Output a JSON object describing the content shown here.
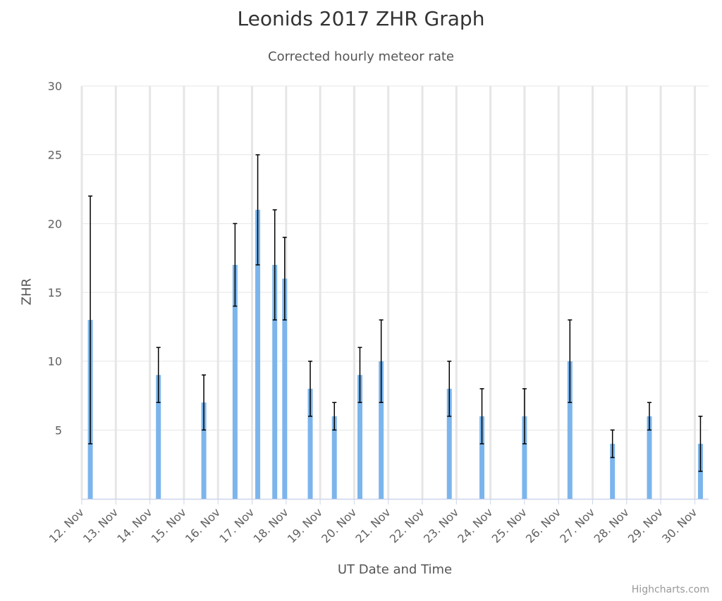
{
  "chart_data": {
    "type": "bar",
    "title": "Leonids 2017 ZHR Graph",
    "subtitle": "Corrected hourly meteor rate",
    "xlabel": "UT Date and Time",
    "ylabel": "ZHR",
    "ylim": [
      0,
      30
    ],
    "yticks": [
      5,
      10,
      15,
      20,
      25,
      30
    ],
    "xticks": [
      "12. Nov",
      "13. Nov",
      "14. Nov",
      "15. Nov",
      "16. Nov",
      "17. Nov",
      "18. Nov",
      "19. Nov",
      "20. Nov",
      "21. Nov",
      "22. Nov",
      "23. Nov",
      "24. Nov",
      "25. Nov",
      "26. Nov",
      "27. Nov",
      "28. Nov",
      "29. Nov",
      "30. Nov"
    ],
    "grid": true,
    "bar_color": "#7cb5ec",
    "errorbar_color": "#000000",
    "series": [
      {
        "points": [
          {
            "x": "2017-11-12 06:00",
            "y": 13,
            "low": 4,
            "high": 22
          },
          {
            "x": "2017-11-14 06:00",
            "y": 9,
            "low": 7,
            "high": 11
          },
          {
            "x": "2017-11-15 14:00",
            "y": 7,
            "low": 5,
            "high": 9
          },
          {
            "x": "2017-11-16 12:00",
            "y": 17,
            "low": 14,
            "high": 20
          },
          {
            "x": "2017-11-17 04:00",
            "y": 21,
            "low": 17,
            "high": 25
          },
          {
            "x": "2017-11-17 16:00",
            "y": 17,
            "low": 13,
            "high": 21
          },
          {
            "x": "2017-11-17 23:00",
            "y": 16,
            "low": 13,
            "high": 19
          },
          {
            "x": "2017-11-18 17:00",
            "y": 8,
            "low": 6,
            "high": 10
          },
          {
            "x": "2017-11-19 10:00",
            "y": 6,
            "low": 5,
            "high": 7
          },
          {
            "x": "2017-11-20 04:00",
            "y": 9,
            "low": 7,
            "high": 11
          },
          {
            "x": "2017-11-20 19:00",
            "y": 10,
            "low": 7,
            "high": 13
          },
          {
            "x": "2017-11-22 19:00",
            "y": 8,
            "low": 6,
            "high": 10
          },
          {
            "x": "2017-11-23 18:00",
            "y": 6,
            "low": 4,
            "high": 8
          },
          {
            "x": "2017-11-25 00:00",
            "y": 6,
            "low": 4,
            "high": 8
          },
          {
            "x": "2017-11-26 08:00",
            "y": 10,
            "low": 7,
            "high": 13
          },
          {
            "x": "2017-11-27 14:00",
            "y": 4,
            "low": 3,
            "high": 5
          },
          {
            "x": "2017-11-28 16:00",
            "y": 6,
            "low": 5,
            "high": 7
          },
          {
            "x": "2017-11-30 04:00",
            "y": 4,
            "low": 2,
            "high": 6
          }
        ]
      }
    ],
    "credits": "Highcharts.com"
  }
}
